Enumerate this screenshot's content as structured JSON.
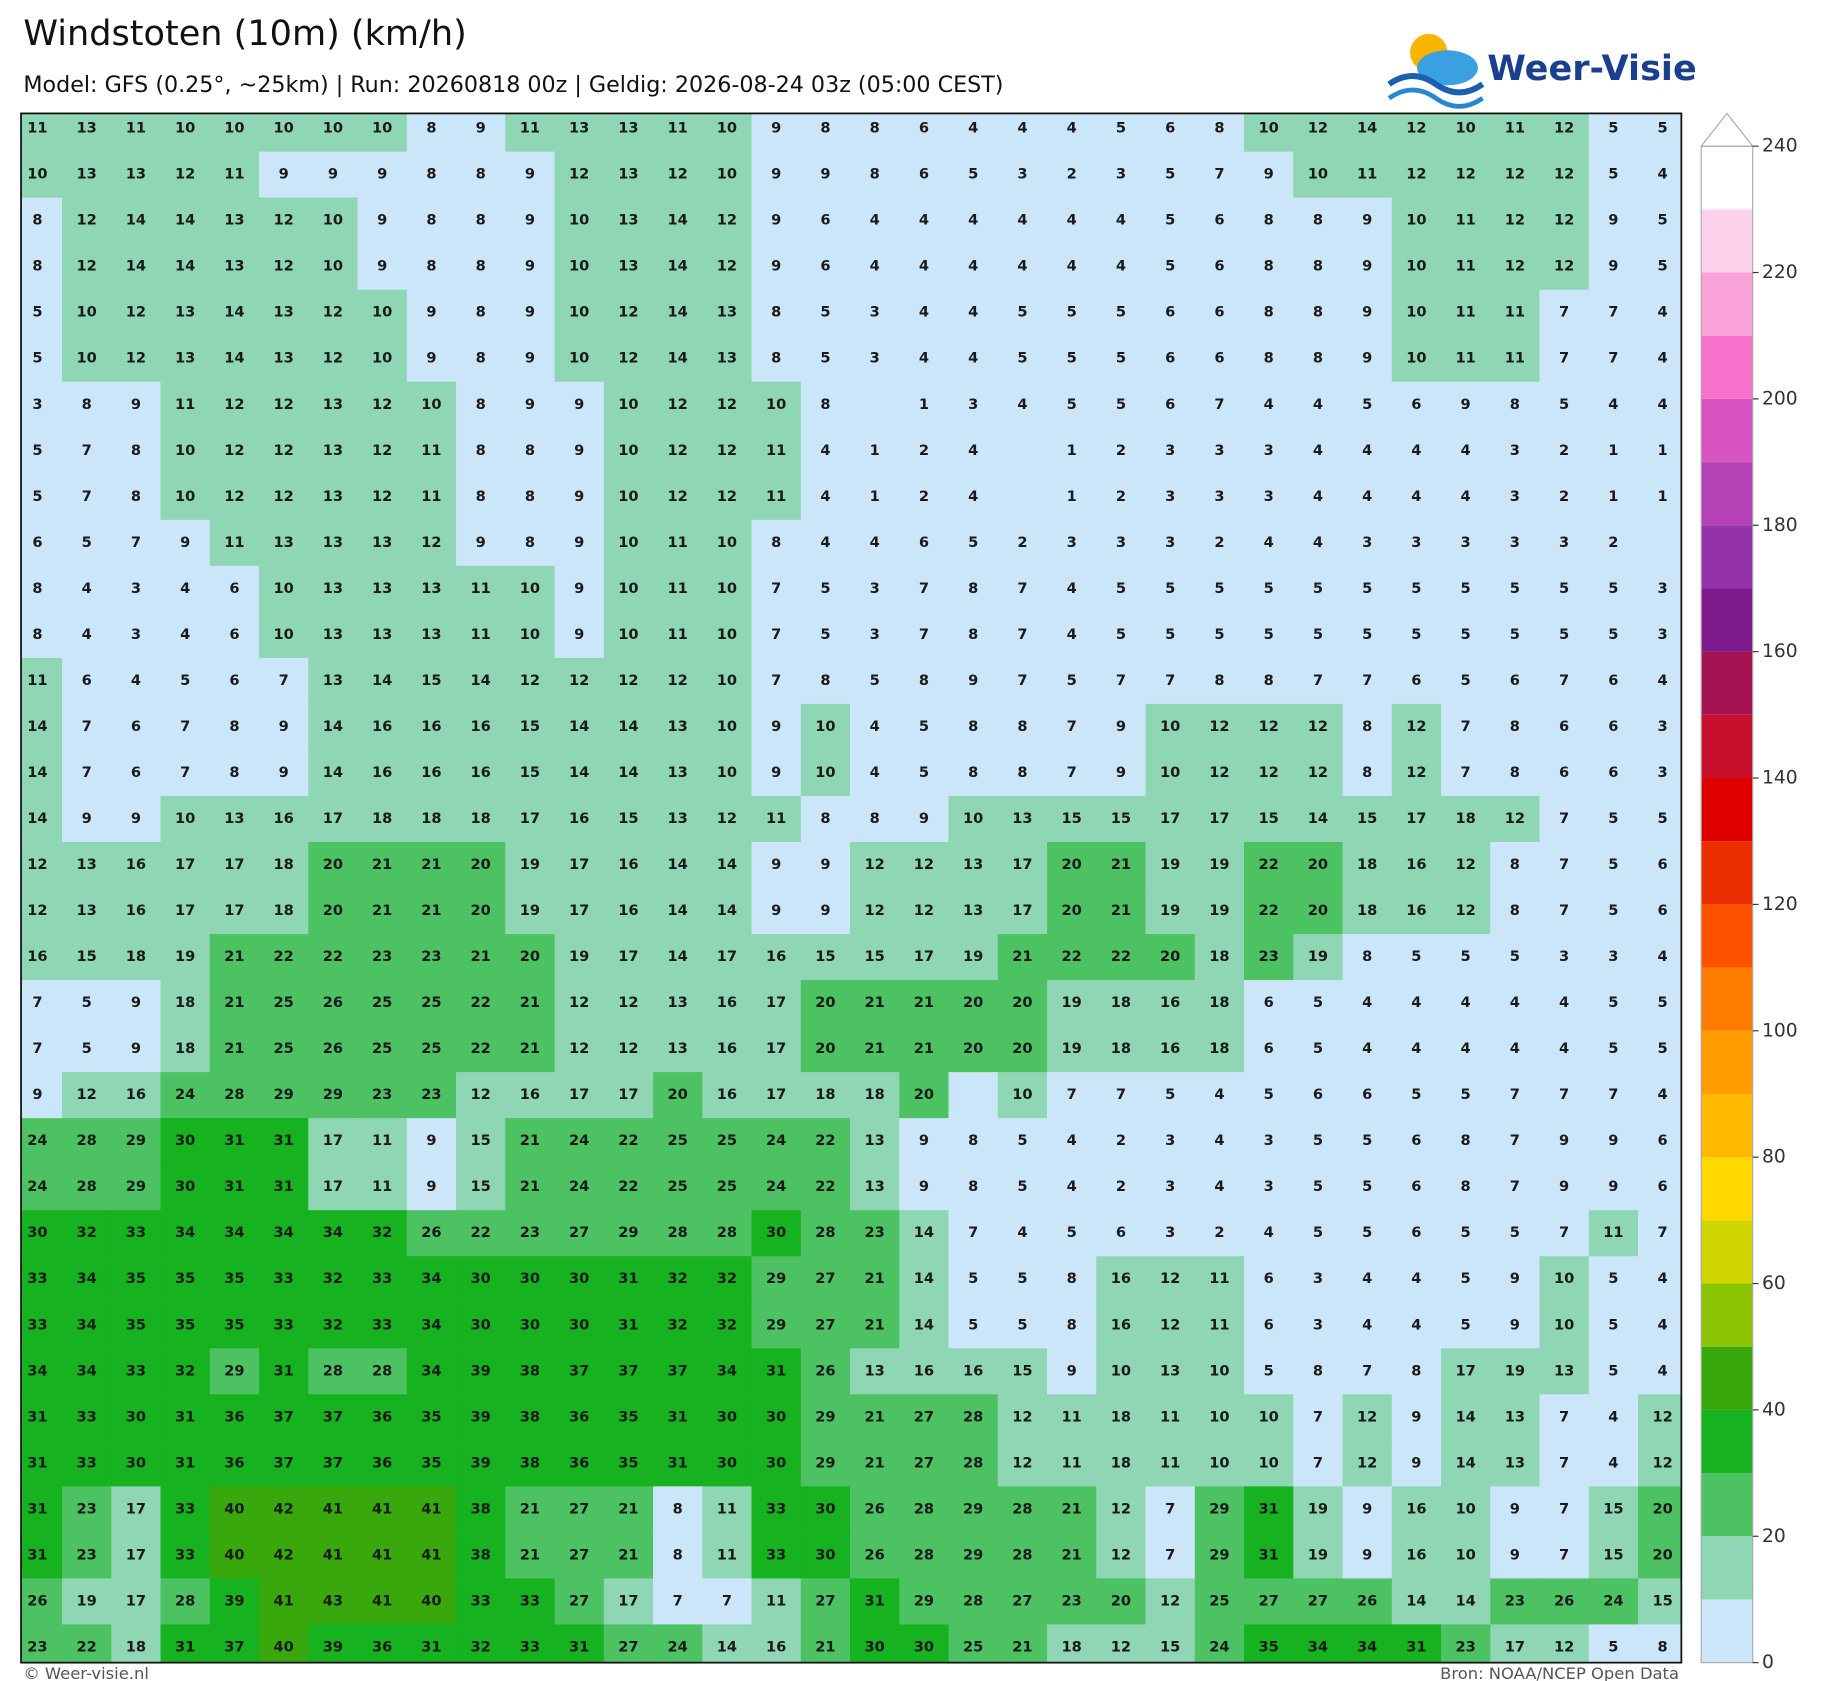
{
  "header": {
    "title": "Windstoten (10m) (km/h)",
    "subtitle": "Model: GFS (0.25°, ~25km)  |  Run: 20260818 00z  |  Geldig: 2026-08-24 03z (05:00 CEST)",
    "logo": "Weer-Visie"
  },
  "footer": {
    "left": "© Weer-visie.nl",
    "right": "Bron: NOAA/NCEP Open Data"
  },
  "colorbar": {
    "bounds": [
      0,
      10,
      20,
      30,
      40,
      50,
      60,
      70,
      80,
      90,
      100,
      110,
      120,
      130,
      140,
      150,
      160,
      170,
      180,
      190,
      200,
      210,
      220,
      230,
      240
    ],
    "colors": [
      "#cce6f9",
      "#8fd6b4",
      "#4cc263",
      "#16b21f",
      "#38a80c",
      "#8bc400",
      "#d2d600",
      "#ffd800",
      "#ffb800",
      "#ff9c00",
      "#ff7c00",
      "#ff5200",
      "#ea2e00",
      "#e00000",
      "#c8102c",
      "#a41252",
      "#7e1a8e",
      "#9432aa",
      "#b442b4",
      "#d854c2",
      "#f872cc",
      "#f8a2d8",
      "#fcd2ec",
      "#ffffff"
    ],
    "ticks": [
      0,
      20,
      40,
      60,
      80,
      100,
      120,
      140,
      160,
      180,
      200,
      220,
      240
    ]
  },
  "grid": {
    "rows": [
      [
        11,
        13,
        11,
        10,
        10,
        10,
        10,
        10,
        8,
        9,
        11,
        13,
        13,
        11,
        10,
        9,
        8,
        8,
        6,
        4,
        4,
        4,
        5,
        6,
        8,
        10,
        12,
        14,
        12,
        10,
        11,
        12,
        5,
        5
      ],
      [
        10,
        13,
        13,
        12,
        11,
        9,
        9,
        9,
        8,
        8,
        9,
        12,
        13,
        12,
        10,
        9,
        9,
        8,
        6,
        5,
        3,
        2,
        3,
        5,
        7,
        9,
        10,
        11,
        12,
        12,
        12,
        12,
        5,
        4
      ],
      [
        8,
        12,
        14,
        14,
        13,
        12,
        10,
        9,
        8,
        8,
        9,
        10,
        13,
        14,
        12,
        9,
        6,
        4,
        4,
        4,
        4,
        4,
        4,
        5,
        6,
        8,
        8,
        9,
        10,
        11,
        12,
        12,
        9,
        5
      ],
      [
        8,
        12,
        14,
        14,
        13,
        12,
        10,
        9,
        8,
        8,
        9,
        10,
        13,
        14,
        12,
        9,
        6,
        4,
        4,
        4,
        4,
        4,
        4,
        5,
        6,
        8,
        8,
        9,
        10,
        11,
        12,
        12,
        9,
        5
      ],
      [
        5,
        10,
        12,
        13,
        14,
        13,
        12,
        10,
        9,
        8,
        9,
        10,
        12,
        14,
        13,
        8,
        5,
        3,
        4,
        4,
        5,
        5,
        5,
        6,
        6,
        8,
        8,
        9,
        10,
        11,
        11,
        7,
        7,
        4
      ],
      [
        5,
        10,
        12,
        13,
        14,
        13,
        12,
        10,
        9,
        8,
        9,
        10,
        12,
        14,
        13,
        8,
        5,
        3,
        4,
        4,
        5,
        5,
        5,
        6,
        6,
        8,
        8,
        9,
        10,
        11,
        11,
        7,
        7,
        4
      ],
      [
        3,
        8,
        9,
        11,
        12,
        12,
        13,
        12,
        10,
        8,
        9,
        9,
        10,
        12,
        12,
        10,
        8,
        null,
        1,
        3,
        4,
        5,
        5,
        6,
        7,
        4,
        4,
        5,
        6,
        9,
        8,
        5,
        4,
        4
      ],
      [
        5,
        7,
        8,
        10,
        12,
        12,
        13,
        12,
        11,
        8,
        8,
        9,
        10,
        12,
        12,
        11,
        4,
        1,
        2,
        4,
        null,
        1,
        2,
        3,
        3,
        3,
        4,
        4,
        4,
        4,
        3,
        2,
        1,
        1
      ],
      [
        5,
        7,
        8,
        10,
        12,
        12,
        13,
        12,
        11,
        8,
        8,
        9,
        10,
        12,
        12,
        11,
        4,
        1,
        2,
        4,
        null,
        1,
        2,
        3,
        3,
        3,
        4,
        4,
        4,
        4,
        3,
        2,
        1,
        1
      ],
      [
        6,
        5,
        7,
        9,
        11,
        13,
        13,
        13,
        12,
        9,
        8,
        9,
        10,
        11,
        10,
        8,
        4,
        4,
        6,
        5,
        2,
        3,
        3,
        3,
        2,
        4,
        4,
        3,
        3,
        3,
        3,
        3,
        2,
        null
      ],
      [
        8,
        4,
        3,
        4,
        6,
        10,
        13,
        13,
        13,
        11,
        10,
        9,
        10,
        11,
        10,
        7,
        5,
        3,
        7,
        8,
        7,
        4,
        5,
        5,
        5,
        5,
        5,
        5,
        5,
        5,
        5,
        5,
        5,
        3
      ],
      [
        8,
        4,
        3,
        4,
        6,
        10,
        13,
        13,
        13,
        11,
        10,
        9,
        10,
        11,
        10,
        7,
        5,
        3,
        7,
        8,
        7,
        4,
        5,
        5,
        5,
        5,
        5,
        5,
        5,
        5,
        5,
        5,
        5,
        3
      ],
      [
        11,
        6,
        4,
        5,
        6,
        7,
        13,
        14,
        15,
        14,
        12,
        12,
        12,
        12,
        10,
        7,
        8,
        5,
        8,
        9,
        7,
        5,
        7,
        7,
        8,
        8,
        7,
        7,
        6,
        5,
        6,
        7,
        6,
        4
      ],
      [
        14,
        7,
        6,
        7,
        8,
        9,
        14,
        16,
        16,
        16,
        15,
        14,
        14,
        13,
        10,
        9,
        10,
        4,
        5,
        8,
        8,
        7,
        9,
        10,
        12,
        12,
        12,
        8,
        12,
        7,
        8,
        6,
        6,
        3
      ],
      [
        14,
        7,
        6,
        7,
        8,
        9,
        14,
        16,
        16,
        16,
        15,
        14,
        14,
        13,
        10,
        9,
        10,
        4,
        5,
        8,
        8,
        7,
        9,
        10,
        12,
        12,
        12,
        8,
        12,
        7,
        8,
        6,
        6,
        3
      ],
      [
        14,
        9,
        9,
        10,
        13,
        16,
        17,
        18,
        18,
        18,
        17,
        16,
        15,
        13,
        12,
        11,
        8,
        8,
        9,
        10,
        13,
        15,
        15,
        17,
        17,
        15,
        14,
        15,
        17,
        18,
        12,
        7,
        5,
        5
      ],
      [
        12,
        13,
        16,
        17,
        17,
        18,
        20,
        21,
        21,
        20,
        19,
        17,
        16,
        14,
        14,
        9,
        9,
        12,
        12,
        13,
        17,
        20,
        21,
        19,
        19,
        22,
        20,
        18,
        16,
        12,
        8,
        7,
        5,
        6
      ],
      [
        12,
        13,
        16,
        17,
        17,
        18,
        20,
        21,
        21,
        20,
        19,
        17,
        16,
        14,
        14,
        9,
        9,
        12,
        12,
        13,
        17,
        20,
        21,
        19,
        19,
        22,
        20,
        18,
        16,
        12,
        8,
        7,
        5,
        6
      ],
      [
        16,
        15,
        18,
        19,
        21,
        22,
        22,
        23,
        23,
        21,
        20,
        19,
        17,
        14,
        17,
        16,
        15,
        15,
        17,
        19,
        21,
        22,
        22,
        20,
        18,
        23,
        19,
        8,
        5,
        5,
        5,
        3,
        3,
        4
      ],
      [
        7,
        5,
        9,
        18,
        21,
        25,
        26,
        25,
        25,
        22,
        21,
        12,
        12,
        13,
        16,
        17,
        20,
        21,
        21,
        20,
        20,
        19,
        18,
        16,
        18,
        6,
        5,
        4,
        4,
        4,
        4,
        4,
        5,
        5
      ],
      [
        7,
        5,
        9,
        18,
        21,
        25,
        26,
        25,
        25,
        22,
        21,
        12,
        12,
        13,
        16,
        17,
        20,
        21,
        21,
        20,
        20,
        19,
        18,
        16,
        18,
        6,
        5,
        4,
        4,
        4,
        4,
        4,
        5,
        5
      ],
      [
        9,
        12,
        16,
        24,
        28,
        29,
        29,
        23,
        23,
        12,
        16,
        17,
        17,
        20,
        16,
        17,
        18,
        18,
        20,
        null,
        10,
        7,
        7,
        5,
        4,
        5,
        6,
        6,
        5,
        5,
        7,
        7,
        7,
        4
      ],
      [
        24,
        28,
        29,
        30,
        31,
        31,
        17,
        11,
        9,
        15,
        21,
        24,
        22,
        25,
        25,
        24,
        22,
        13,
        9,
        8,
        5,
        4,
        2,
        3,
        4,
        3,
        5,
        5,
        6,
        8,
        7,
        9,
        9,
        6
      ],
      [
        24,
        28,
        29,
        30,
        31,
        31,
        17,
        11,
        9,
        15,
        21,
        24,
        22,
        25,
        25,
        24,
        22,
        13,
        9,
        8,
        5,
        4,
        2,
        3,
        4,
        3,
        5,
        5,
        6,
        8,
        7,
        9,
        9,
        6
      ],
      [
        30,
        32,
        33,
        34,
        34,
        34,
        34,
        32,
        26,
        22,
        23,
        27,
        29,
        28,
        28,
        30,
        28,
        23,
        14,
        7,
        4,
        5,
        6,
        3,
        2,
        4,
        5,
        5,
        6,
        5,
        5,
        7,
        11,
        7
      ],
      [
        33,
        34,
        35,
        35,
        35,
        33,
        32,
        33,
        34,
        30,
        30,
        30,
        31,
        32,
        32,
        29,
        27,
        21,
        14,
        5,
        5,
        8,
        16,
        12,
        11,
        6,
        3,
        4,
        4,
        5,
        9,
        10,
        5,
        4
      ],
      [
        33,
        34,
        35,
        35,
        35,
        33,
        32,
        33,
        34,
        30,
        30,
        30,
        31,
        32,
        32,
        29,
        27,
        21,
        14,
        5,
        5,
        8,
        16,
        12,
        11,
        6,
        3,
        4,
        4,
        5,
        9,
        10,
        5,
        4
      ],
      [
        34,
        34,
        33,
        32,
        29,
        31,
        28,
        28,
        34,
        39,
        38,
        37,
        37,
        37,
        34,
        31,
        26,
        13,
        16,
        16,
        15,
        9,
        10,
        13,
        10,
        5,
        8,
        7,
        8,
        17,
        19,
        13,
        5,
        4
      ],
      [
        31,
        33,
        30,
        31,
        36,
        37,
        37,
        36,
        35,
        39,
        38,
        36,
        35,
        31,
        30,
        30,
        29,
        21,
        27,
        28,
        12,
        11,
        18,
        11,
        10,
        10,
        7,
        12,
        9,
        14,
        13,
        7,
        4,
        12
      ],
      [
        31,
        33,
        30,
        31,
        36,
        37,
        37,
        36,
        35,
        39,
        38,
        36,
        35,
        31,
        30,
        30,
        29,
        21,
        27,
        28,
        12,
        11,
        18,
        11,
        10,
        10,
        7,
        12,
        9,
        14,
        13,
        7,
        4,
        12
      ],
      [
        31,
        23,
        17,
        33,
        40,
        42,
        41,
        41,
        41,
        38,
        21,
        27,
        21,
        8,
        11,
        33,
        30,
        26,
        28,
        29,
        28,
        21,
        12,
        7,
        29,
        31,
        19,
        9,
        16,
        10,
        9,
        7,
        15,
        20
      ],
      [
        31,
        23,
        17,
        33,
        40,
        42,
        41,
        41,
        41,
        38,
        21,
        27,
        21,
        8,
        11,
        33,
        30,
        26,
        28,
        29,
        28,
        21,
        12,
        7,
        29,
        31,
        19,
        9,
        16,
        10,
        9,
        7,
        15,
        20
      ],
      [
        26,
        19,
        17,
        28,
        39,
        41,
        43,
        41,
        40,
        33,
        33,
        27,
        17,
        7,
        7,
        11,
        27,
        31,
        29,
        28,
        27,
        23,
        20,
        12,
        25,
        27,
        27,
        26,
        14,
        14,
        23,
        26,
        24,
        15
      ],
      [
        23,
        22,
        18,
        31,
        37,
        40,
        39,
        36,
        31,
        32,
        33,
        31,
        27,
        24,
        14,
        16,
        21,
        30,
        30,
        25,
        21,
        18,
        12,
        15,
        24,
        35,
        34,
        34,
        31,
        23,
        17,
        12,
        5,
        8
      ]
    ]
  }
}
